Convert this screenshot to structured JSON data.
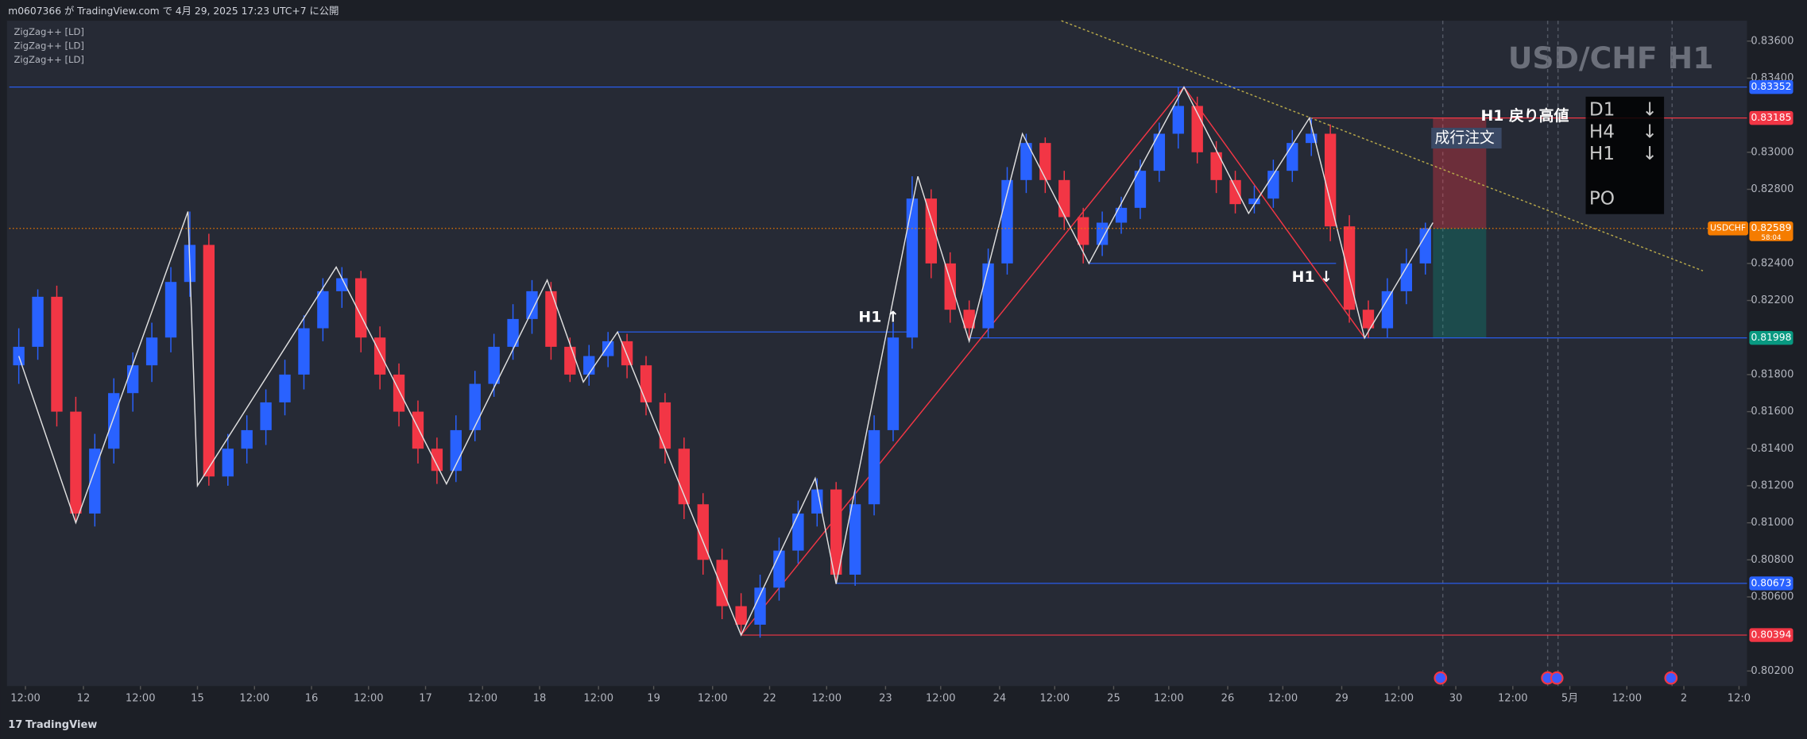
{
  "chart_data": {
    "type": "candlestick",
    "title": "USD/CHF H1",
    "header": "m0607366 が TradingView.com で 4月 29, 2025 17:23 UTC+7 に公開",
    "indicators": [
      "ZigZag++ [LD]",
      "ZigZag++ [LD]",
      "ZigZag++ [LD]"
    ],
    "footer": "TradingView",
    "up_color": "#2962ff",
    "down_color": "#f23645",
    "candles": [
      [
        0.8185,
        0.8205,
        0.8175,
        0.8195
      ],
      [
        0.8195,
        0.8226,
        0.8188,
        0.8222
      ],
      [
        0.8222,
        0.8228,
        0.8152,
        0.816
      ],
      [
        0.816,
        0.8168,
        0.81,
        0.8105
      ],
      [
        0.8105,
        0.8148,
        0.8098,
        0.814
      ],
      [
        0.814,
        0.8178,
        0.8132,
        0.817
      ],
      [
        0.817,
        0.8192,
        0.816,
        0.8185
      ],
      [
        0.8185,
        0.8208,
        0.8176,
        0.82
      ],
      [
        0.82,
        0.8238,
        0.8192,
        0.823
      ],
      [
        0.823,
        0.8268,
        0.8222,
        0.825
      ],
      [
        0.825,
        0.8256,
        0.812,
        0.8125
      ],
      [
        0.8125,
        0.8148,
        0.812,
        0.814
      ],
      [
        0.814,
        0.8158,
        0.8132,
        0.815
      ],
      [
        0.815,
        0.8172,
        0.8142,
        0.8165
      ],
      [
        0.8165,
        0.8188,
        0.8158,
        0.818
      ],
      [
        0.818,
        0.8212,
        0.8172,
        0.8205
      ],
      [
        0.8205,
        0.8232,
        0.8198,
        0.8225
      ],
      [
        0.8225,
        0.8238,
        0.8216,
        0.8232
      ],
      [
        0.8232,
        0.8236,
        0.8192,
        0.82
      ],
      [
        0.82,
        0.8206,
        0.8172,
        0.818
      ],
      [
        0.818,
        0.8186,
        0.8152,
        0.816
      ],
      [
        0.816,
        0.8166,
        0.8132,
        0.814
      ],
      [
        0.814,
        0.8146,
        0.8121,
        0.8128
      ],
      [
        0.8128,
        0.8158,
        0.8122,
        0.815
      ],
      [
        0.815,
        0.8182,
        0.8144,
        0.8175
      ],
      [
        0.8175,
        0.8202,
        0.8168,
        0.8195
      ],
      [
        0.8195,
        0.8218,
        0.8188,
        0.821
      ],
      [
        0.821,
        0.8231,
        0.8202,
        0.8225
      ],
      [
        0.8225,
        0.823,
        0.8188,
        0.8195
      ],
      [
        0.8195,
        0.82,
        0.8176,
        0.818
      ],
      [
        0.818,
        0.8196,
        0.8174,
        0.819
      ],
      [
        0.819,
        0.8203,
        0.8184,
        0.8198
      ],
      [
        0.8198,
        0.8202,
        0.8178,
        0.8185
      ],
      [
        0.8185,
        0.819,
        0.8158,
        0.8165
      ],
      [
        0.8165,
        0.817,
        0.8132,
        0.814
      ],
      [
        0.814,
        0.8146,
        0.8102,
        0.811
      ],
      [
        0.811,
        0.8116,
        0.8072,
        0.808
      ],
      [
        0.808,
        0.8086,
        0.8048,
        0.8055
      ],
      [
        0.8055,
        0.8062,
        0.80394,
        0.8045
      ],
      [
        0.8045,
        0.8072,
        0.8038,
        0.8065
      ],
      [
        0.8065,
        0.8092,
        0.8058,
        0.8085
      ],
      [
        0.8085,
        0.8112,
        0.8078,
        0.8105
      ],
      [
        0.8105,
        0.8124,
        0.8098,
        0.8118
      ],
      [
        0.8118,
        0.8122,
        0.8067,
        0.8072
      ],
      [
        0.8072,
        0.8118,
        0.8066,
        0.811
      ],
      [
        0.811,
        0.8158,
        0.8104,
        0.815
      ],
      [
        0.815,
        0.8208,
        0.8144,
        0.82
      ],
      [
        0.82,
        0.8287,
        0.8194,
        0.8275
      ],
      [
        0.8275,
        0.828,
        0.8232,
        0.824
      ],
      [
        0.824,
        0.8246,
        0.8208,
        0.8215
      ],
      [
        0.8215,
        0.822,
        0.8198,
        0.8205
      ],
      [
        0.8205,
        0.8248,
        0.82,
        0.824
      ],
      [
        0.824,
        0.8292,
        0.8234,
        0.8285
      ],
      [
        0.8285,
        0.831,
        0.8278,
        0.8305
      ],
      [
        0.8305,
        0.8308,
        0.8278,
        0.8285
      ],
      [
        0.8285,
        0.829,
        0.8258,
        0.8265
      ],
      [
        0.8265,
        0.827,
        0.824,
        0.825
      ],
      [
        0.825,
        0.8268,
        0.8244,
        0.8262
      ],
      [
        0.8262,
        0.8276,
        0.8256,
        0.827
      ],
      [
        0.827,
        0.8296,
        0.8264,
        0.829
      ],
      [
        0.829,
        0.8316,
        0.8284,
        0.831
      ],
      [
        0.831,
        0.83352,
        0.8302,
        0.8325
      ],
      [
        0.8325,
        0.833,
        0.8294,
        0.83
      ],
      [
        0.83,
        0.8306,
        0.8278,
        0.8285
      ],
      [
        0.8285,
        0.829,
        0.8267,
        0.8272
      ],
      [
        0.8272,
        0.8282,
        0.8267,
        0.8275
      ],
      [
        0.8275,
        0.8296,
        0.827,
        0.829
      ],
      [
        0.829,
        0.8312,
        0.8284,
        0.8305
      ],
      [
        0.8305,
        0.83185,
        0.8298,
        0.831
      ],
      [
        0.831,
        0.8315,
        0.8252,
        0.826
      ],
      [
        0.826,
        0.8266,
        0.8208,
        0.8215
      ],
      [
        0.8215,
        0.822,
        0.81998,
        0.8205
      ],
      [
        0.8205,
        0.8232,
        0.82,
        0.8225
      ],
      [
        0.8225,
        0.8248,
        0.8218,
        0.824
      ],
      [
        0.824,
        0.8262,
        0.8234,
        0.8259
      ]
    ],
    "zigzag": {
      "color": "#e0e0e0",
      "x": [
        0,
        3,
        8.9,
        9.4,
        16.7,
        22.5,
        27.8,
        29.7,
        31.5,
        38,
        41.9,
        43,
        47.3,
        50,
        52.8,
        56.3,
        61.3,
        64.7,
        67.9,
        70.8,
        74.4
      ],
      "values": [
        0.819,
        0.81,
        0.8268,
        0.812,
        0.8238,
        0.8121,
        0.8231,
        0.8176,
        0.8203,
        0.80394,
        0.8124,
        0.8067,
        0.8287,
        0.8198,
        0.831,
        0.824,
        0.83352,
        0.8267,
        0.83185,
        0.81998,
        0.8262
      ]
    },
    "zigzag_major": {
      "color": "#f23645",
      "x": [
        38,
        61.3,
        70.8
      ],
      "values": [
        0.80394,
        0.83352,
        0.81998
      ]
    },
    "trendline": {
      "color": "#b8a94a",
      "x": [
        54.85,
        88.6
      ],
      "values": [
        0.8371,
        0.8236
      ]
    },
    "levels": [
      {
        "value": 0.83352,
        "from": -0.5,
        "color": "#2962ff"
      },
      {
        "value": 0.83185,
        "from": 67.9,
        "color": "#f23645"
      },
      {
        "value": 0.81998,
        "from": 50,
        "color": "#089981"
      },
      {
        "value": 0.80673,
        "from": 43,
        "color": "#2962ff"
      },
      {
        "value": 0.80394,
        "from": 38,
        "color": "#f23645"
      },
      {
        "value": 0.8203,
        "from": 31.5,
        "to": 47.2,
        "color": "#2962ff"
      },
      {
        "value": 0.824,
        "from": 56.3,
        "to": 69.3,
        "color": "#2962ff"
      }
    ],
    "current": {
      "symbol": "USDCHF",
      "value": 0.82589,
      "countdown": "58:04",
      "color": "#f57c00"
    },
    "position": {
      "entry": 0.82589,
      "stop": 0.83185,
      "target": 0.81998,
      "from": 74.4,
      "to": 77.2
    },
    "annotations": {
      "up": "H1 ↑",
      "down": "H1 ↓",
      "high": "H1 戻り高値",
      "order": "成行注文"
    },
    "signals": [
      {
        "tf": "D1",
        "dir": "↓"
      },
      {
        "tf": "H4",
        "dir": "↓"
      },
      {
        "tf": "H1",
        "dir": "↓"
      }
    ],
    "po": "PO",
    "xlim": [
      -0.5,
      90.8
    ],
    "ylim": [
      0.80125,
      0.8371
    ],
    "yticks": [
      {
        "value": 0.836,
        "label": "0.83600"
      },
      {
        "value": 0.834,
        "label": "0.83400"
      },
      {
        "value": 0.83,
        "label": "0.83000"
      },
      {
        "value": 0.828,
        "label": "0.82800"
      },
      {
        "value": 0.824,
        "label": "0.82400"
      },
      {
        "value": 0.822,
        "label": "0.82200"
      },
      {
        "value": 0.818,
        "label": "0.81800"
      },
      {
        "value": 0.816,
        "label": "0.81600"
      },
      {
        "value": 0.814,
        "label": "0.81400"
      },
      {
        "value": 0.812,
        "label": "0.81200"
      },
      {
        "value": 0.81,
        "label": "0.81000"
      },
      {
        "value": 0.808,
        "label": "0.80800"
      },
      {
        "value": 0.806,
        "label": "0.80600"
      },
      {
        "value": 0.802,
        "label": "0.80200"
      }
    ],
    "xticks": [
      {
        "value": 0.35,
        "label": "12:00"
      },
      {
        "value": 3.4,
        "label": "12"
      },
      {
        "value": 6.4,
        "label": "12:00"
      },
      {
        "value": 9.4,
        "label": "15"
      },
      {
        "value": 12.4,
        "label": "12:00"
      },
      {
        "value": 15.4,
        "label": "16"
      },
      {
        "value": 18.4,
        "label": "12:00"
      },
      {
        "value": 21.4,
        "label": "17"
      },
      {
        "value": 24.4,
        "label": "12:00"
      },
      {
        "value": 27.4,
        "label": "18"
      },
      {
        "value": 30.5,
        "label": "12:00"
      },
      {
        "value": 33.4,
        "label": "19"
      },
      {
        "value": 36.5,
        "label": "12:00"
      },
      {
        "value": 39.5,
        "label": "22"
      },
      {
        "value": 42.5,
        "label": "12:00"
      },
      {
        "value": 45.6,
        "label": "23"
      },
      {
        "value": 48.5,
        "label": "12:00"
      },
      {
        "value": 51.6,
        "label": "24"
      },
      {
        "value": 54.5,
        "label": "12:00"
      },
      {
        "value": 57.6,
        "label": "25"
      },
      {
        "value": 60.5,
        "label": "12:00"
      },
      {
        "value": 63.6,
        "label": "26"
      },
      {
        "value": 66.5,
        "label": "12:00"
      },
      {
        "value": 69.6,
        "label": "29"
      },
      {
        "value": 72.6,
        "label": "12:00"
      },
      {
        "value": 75.6,
        "label": "30"
      },
      {
        "value": 78.6,
        "label": "12:00"
      },
      {
        "value": 81.6,
        "label": "5月"
      },
      {
        "value": 84.6,
        "label": "12:00"
      },
      {
        "value": 87.6,
        "label": "2"
      },
      {
        "value": 90.5,
        "label": "12:0"
      }
    ]
  }
}
